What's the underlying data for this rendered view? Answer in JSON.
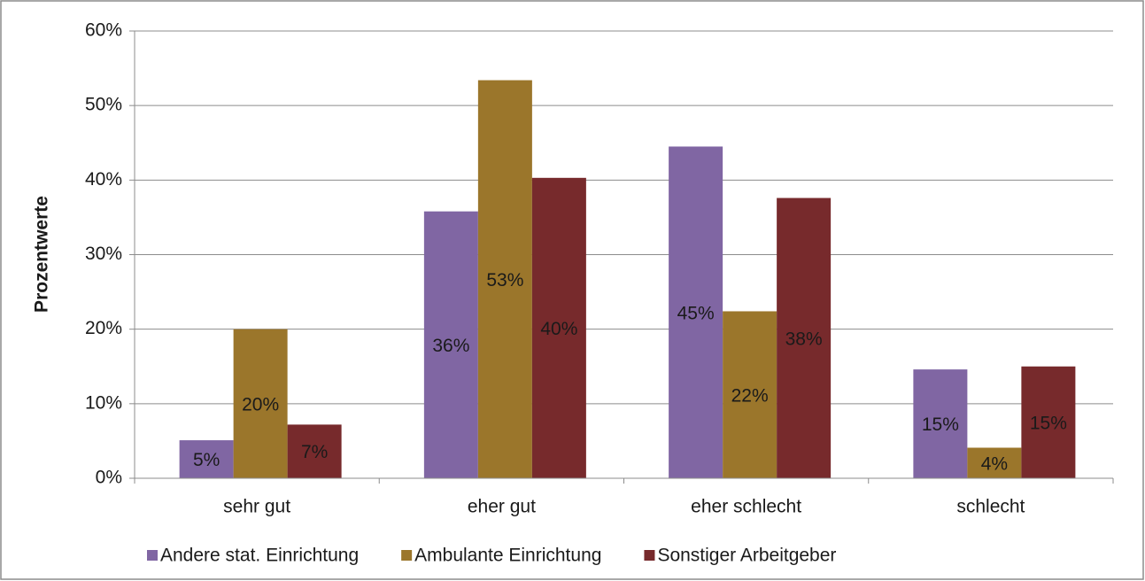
{
  "chart_data": {
    "type": "bar",
    "y_axis_label": "Prozentwerte",
    "categories": [
      "sehr gut",
      "eher gut",
      "eher schlecht",
      "schlecht"
    ],
    "series": [
      {
        "name": "Andere stat. Einrichtung",
        "color": "#8066a3",
        "values": [
          5.1,
          35.8,
          44.5,
          14.6
        ],
        "value_labels": [
          "5%",
          "36%",
          "45%",
          "15%"
        ]
      },
      {
        "name": "Ambulante Einrichtung",
        "color": "#9b762b",
        "values": [
          20,
          53.4,
          22.4,
          4.1
        ],
        "value_labels": [
          "20%",
          "53%",
          "22%",
          "4%"
        ]
      },
      {
        "name": "Sonstiger Arbeitgeber",
        "color": "#772a2c",
        "values": [
          7.2,
          40.3,
          37.6,
          15.0
        ],
        "value_labels": [
          "7%",
          "40%",
          "38%",
          "15%"
        ]
      }
    ],
    "ylim": [
      0,
      60
    ],
    "yticks": [
      {
        "value": 0,
        "label": "0%"
      },
      {
        "value": 10,
        "label": "10%"
      },
      {
        "value": 20,
        "label": "20%"
      },
      {
        "value": 30,
        "label": "30%"
      },
      {
        "value": 40,
        "label": "40%"
      },
      {
        "value": 50,
        "label": "50%"
      },
      {
        "value": 60,
        "label": "60%"
      }
    ],
    "grid": true,
    "legend": "bottom"
  }
}
